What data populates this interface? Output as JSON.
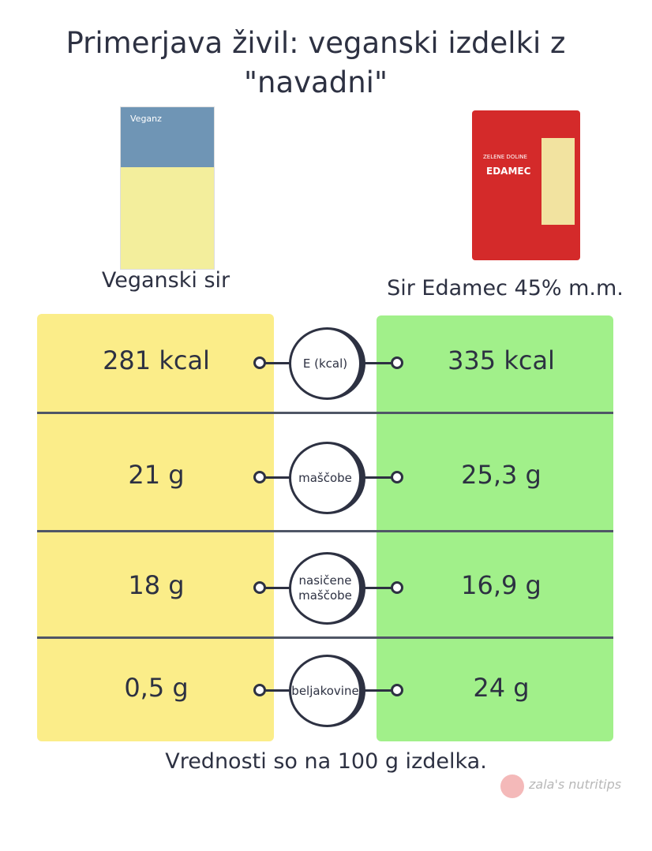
{
  "header": {
    "title": "Primerjava živil: veganski izdelki z \"navadni\""
  },
  "products": [
    {
      "name": "Veganski sir",
      "package_text": "Veganz"
    },
    {
      "name": "Sir Edamec 45% m.m.",
      "package_text": "EDAMEC",
      "brand": "ZELENE DOLINE"
    }
  ],
  "rows": [
    {
      "label": "E (kcal)",
      "left": "281 kcal",
      "right": "335 kcal"
    },
    {
      "label": "maščobe",
      "left": "21 g",
      "right": "25,3 g"
    },
    {
      "label": "nasičene maščobe",
      "left": "18 g",
      "right": "16,9 g"
    },
    {
      "label": "beljakovine",
      "left": "0,5 g",
      "right": "24 g"
    }
  ],
  "footer": {
    "note": "Vrednosti so na 100 g izdelka.",
    "watermark": "zala's nutritips"
  }
}
